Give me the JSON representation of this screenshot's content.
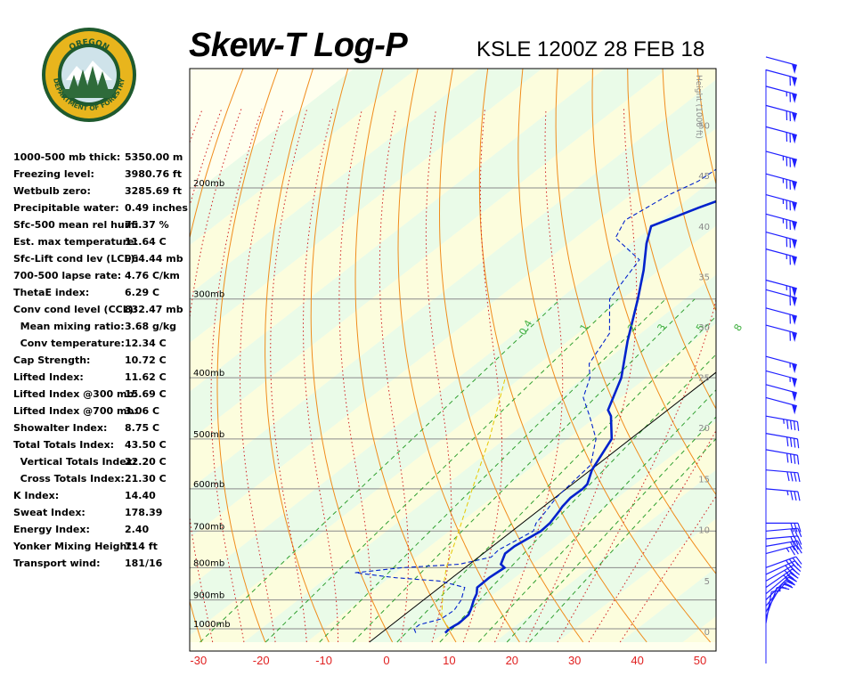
{
  "header": {
    "title": "Skew-T Log-P",
    "station": "KSLE 1200Z 28 FEB 18"
  },
  "logo": {
    "text_top": "OREGON",
    "text_bottom": "DEPARTMENT OF FORESTRY",
    "colors": {
      "ring": "#1f5a2e",
      "gold": "#e8b51d",
      "tree": "#2e6b3a"
    }
  },
  "indices": [
    {
      "label": "1000-500 mb thick:",
      "value": "5350.00 m"
    },
    {
      "label": "Freezing level:",
      "value": "3980.76 ft"
    },
    {
      "label": "Wetbulb zero:",
      "value": "3285.69 ft"
    },
    {
      "label": "Precipitable water:",
      "value": "0.49 inches"
    },
    {
      "label": "Sfc-500 mean rel hum:",
      "value": "75.37 %"
    },
    {
      "label": "Est. max temperature:",
      "value": "11.64 C"
    },
    {
      "label": "Sfc-Lift cond lev (LCL):",
      "value": "964.44 mb"
    },
    {
      "label": "700-500 lapse rate:",
      "value": "4.76 C/km"
    },
    {
      "label": "ThetaE index:",
      "value": "6.29 C"
    },
    {
      "label": "Conv cond level (CCL):",
      "value": "832.47 mb"
    },
    {
      "label": " Mean mixing ratio:",
      "value": "3.68 g/kg"
    },
    {
      "label": " Conv temperature:",
      "value": "12.34 C"
    },
    {
      "label": "Cap Strength:",
      "value": "10.72 C"
    },
    {
      "label": "Lifted Index:",
      "value": "11.62 C"
    },
    {
      "label": "Lifted Index @300 mb:",
      "value": "15.69 C"
    },
    {
      "label": "Lifted Index @700 mb:",
      "value": "3.06 C"
    },
    {
      "label": "Showalter Index:",
      "value": "8.75 C"
    },
    {
      "label": "Total Totals Index:",
      "value": "43.50 C"
    },
    {
      "label": " Vertical Totals Index:",
      "value": "22.20 C"
    },
    {
      "label": " Cross Totals Index:",
      "value": "21.30 C"
    },
    {
      "label": "K Index:",
      "value": "14.40"
    },
    {
      "label": "Sweat Index:",
      "value": "178.39"
    },
    {
      "label": "Energy Index:",
      "value": "2.40"
    },
    {
      "label": "Yonker Mixing Height:",
      "value": "714 ft"
    },
    {
      "label": "Transport wind:",
      "value": "181/16"
    }
  ],
  "chart_data": {
    "type": "line",
    "plot": "skew-t log-p",
    "x_axis": {
      "ticks": [
        -30,
        -20,
        -10,
        0,
        10,
        20,
        30,
        40,
        50
      ],
      "unit": "C",
      "range": [
        -30,
        52
      ]
    },
    "pressure_levels": [
      {
        "p": 200,
        "label": "200mb"
      },
      {
        "p": 300,
        "label": "300mb"
      },
      {
        "p": 400,
        "label": "400mb"
      },
      {
        "p": 500,
        "label": "500mb"
      },
      {
        "p": 600,
        "label": "600mb"
      },
      {
        "p": 700,
        "label": "700mb"
      },
      {
        "p": 800,
        "label": "800mb"
      },
      {
        "p": 900,
        "label": "900mb"
      },
      {
        "p": 1000,
        "label": "1000mb"
      }
    ],
    "height_axis": {
      "label": "Height (1000 ft)",
      "ticks": [
        {
          "label": "0",
          "kft": 0
        },
        {
          "label": "5",
          "kft": 5
        },
        {
          "label": "10",
          "kft": 10
        },
        {
          "label": "15",
          "kft": 15
        },
        {
          "label": "20",
          "kft": 20
        },
        {
          "label": "25",
          "kft": 25
        },
        {
          "label": "30",
          "kft": 30
        },
        {
          "label": "35",
          "kft": 35
        },
        {
          "label": "40",
          "kft": 40
        },
        {
          "label": "45",
          "kft": 45
        },
        {
          "label": "50",
          "kft": 50
        }
      ]
    },
    "mixing_ratio_labels": [
      "0.4",
      "1",
      "2",
      "3",
      "5",
      "8"
    ],
    "series": [
      {
        "kind": "temperature",
        "color": "#0022cc",
        "points": [
          [
            1015,
            10.2
          ],
          [
            1000,
            10.0
          ],
          [
            980,
            10.4
          ],
          [
            950,
            10.2
          ],
          [
            930,
            9.4
          ],
          [
            900,
            8.0
          ],
          [
            880,
            7.2
          ],
          [
            860,
            6.0
          ],
          [
            830,
            5.9
          ],
          [
            800,
            6.3
          ],
          [
            790,
            5.0
          ],
          [
            760,
            3.5
          ],
          [
            740,
            3.5
          ],
          [
            700,
            4.6
          ],
          [
            680,
            4.4
          ],
          [
            650,
            3.4
          ],
          [
            640,
            3.0
          ],
          [
            620,
            2.5
          ],
          [
            600,
            2.6
          ],
          [
            590,
            2.4
          ],
          [
            560,
            0.2
          ],
          [
            500,
            -3.0
          ],
          [
            460,
            -7.8
          ],
          [
            450,
            -9.5
          ],
          [
            400,
            -14.0
          ],
          [
            350,
            -20.5
          ],
          [
            300,
            -27.5
          ],
          [
            270,
            -32.5
          ],
          [
            245,
            -37.5
          ],
          [
            230,
            -40.3
          ],
          [
            220,
            -37.8
          ],
          [
            215,
            -36.5
          ],
          [
            205,
            -33.5
          ],
          [
            200,
            -33.3
          ],
          [
            196,
            -29.0
          ],
          [
            185,
            -29.0
          ],
          [
            176,
            -28.2
          ],
          [
            168,
            -27.9
          ],
          [
            158,
            -29.5
          ],
          [
            155,
            -29.3
          ],
          [
            148,
            -32.0
          ],
          [
            140,
            -33.0
          ],
          [
            130,
            -35.0
          ],
          [
            121,
            -37.3
          ]
        ]
      },
      {
        "kind": "dewpoint",
        "color": "#0022cc",
        "points": [
          [
            1015,
            5.5
          ],
          [
            1000,
            4.4
          ],
          [
            985,
            4.4
          ],
          [
            965,
            6.7
          ],
          [
            935,
            7.0
          ],
          [
            900,
            6.0
          ],
          [
            880,
            5.0
          ],
          [
            860,
            4.0
          ],
          [
            840,
            -1.3
          ],
          [
            830,
            -9.0
          ],
          [
            815,
            -16.5
          ],
          [
            800,
            -10.0
          ],
          [
            790,
            -1.6
          ],
          [
            770,
            2.0
          ],
          [
            750,
            1.7
          ],
          [
            700,
            3.4
          ],
          [
            680,
            2.2
          ],
          [
            650,
            1.3
          ],
          [
            620,
            0.2
          ],
          [
            550,
            -1.0
          ],
          [
            500,
            -5.5
          ],
          [
            460,
            -11.2
          ],
          [
            430,
            -16.0
          ],
          [
            400,
            -19.0
          ],
          [
            380,
            -22.0
          ],
          [
            340,
            -25.0
          ],
          [
            300,
            -32.0
          ],
          [
            260,
            -35.3
          ],
          [
            240,
            -43.6
          ],
          [
            225,
            -45.7
          ],
          [
            205,
            -43.9
          ],
          [
            195,
            -42.0
          ],
          [
            185,
            -41.5
          ],
          [
            175,
            -42.0
          ],
          [
            160,
            -46.0
          ],
          [
            150,
            -48.5
          ],
          [
            140,
            -52.0
          ],
          [
            130,
            -55.5
          ],
          [
            122,
            -57.5
          ]
        ]
      },
      {
        "kind": "parcel",
        "color": "#e6c800",
        "points": [
          [
            1000,
            10.0
          ],
          [
            960,
            6.5
          ],
          [
            900,
            3.0
          ],
          [
            850,
            0.0
          ],
          [
            800,
            -3.0
          ],
          [
            700,
            -8.5
          ],
          [
            600,
            -15.0
          ],
          [
            500,
            -22.5
          ],
          [
            400,
            -32.5
          ]
        ]
      }
    ],
    "wind_barbs": [
      {
        "p": 980,
        "dir": 190,
        "spd": 10
      },
      {
        "p": 960,
        "dir": 200,
        "spd": 15
      },
      {
        "p": 940,
        "dir": 210,
        "spd": 20
      },
      {
        "p": 920,
        "dir": 220,
        "spd": 25
      },
      {
        "p": 900,
        "dir": 225,
        "spd": 30
      },
      {
        "p": 880,
        "dir": 230,
        "spd": 30
      },
      {
        "p": 860,
        "dir": 235,
        "spd": 35
      },
      {
        "p": 840,
        "dir": 240,
        "spd": 35
      },
      {
        "p": 820,
        "dir": 245,
        "spd": 35
      },
      {
        "p": 800,
        "dir": 250,
        "spd": 35
      },
      {
        "p": 760,
        "dir": 255,
        "spd": 35
      },
      {
        "p": 740,
        "dir": 260,
        "spd": 30
      },
      {
        "p": 720,
        "dir": 265,
        "spd": 30
      },
      {
        "p": 700,
        "dir": 265,
        "spd": 30
      },
      {
        "p": 680,
        "dir": 270,
        "spd": 30
      },
      {
        "p": 600,
        "dir": 275,
        "spd": 35
      },
      {
        "p": 560,
        "dir": 275,
        "spd": 40
      },
      {
        "p": 520,
        "dir": 280,
        "spd": 40
      },
      {
        "p": 490,
        "dir": 280,
        "spd": 40
      },
      {
        "p": 460,
        "dir": 280,
        "spd": 45
      },
      {
        "p": 430,
        "dir": 285,
        "spd": 50
      },
      {
        "p": 410,
        "dir": 285,
        "spd": 50
      },
      {
        "p": 390,
        "dir": 285,
        "spd": 55
      },
      {
        "p": 370,
        "dir": 285,
        "spd": 55
      },
      {
        "p": 330,
        "dir": 285,
        "spd": 60
      },
      {
        "p": 310,
        "dir": 285,
        "spd": 60
      },
      {
        "p": 290,
        "dir": 285,
        "spd": 60
      },
      {
        "p": 280,
        "dir": 285,
        "spd": 65
      },
      {
        "p": 250,
        "dir": 285,
        "spd": 65
      },
      {
        "p": 235,
        "dir": 285,
        "spd": 70
      },
      {
        "p": 220,
        "dir": 285,
        "spd": 75
      },
      {
        "p": 205,
        "dir": 285,
        "spd": 75
      },
      {
        "p": 190,
        "dir": 285,
        "spd": 75
      },
      {
        "p": 175,
        "dir": 285,
        "spd": 75
      },
      {
        "p": 160,
        "dir": 285,
        "spd": 70
      },
      {
        "p": 148,
        "dir": 285,
        "spd": 70
      },
      {
        "p": 138,
        "dir": 285,
        "spd": 65
      },
      {
        "p": 130,
        "dir": 285,
        "spd": 60
      },
      {
        "p": 124,
        "dir": 285,
        "spd": 50
      }
    ]
  }
}
